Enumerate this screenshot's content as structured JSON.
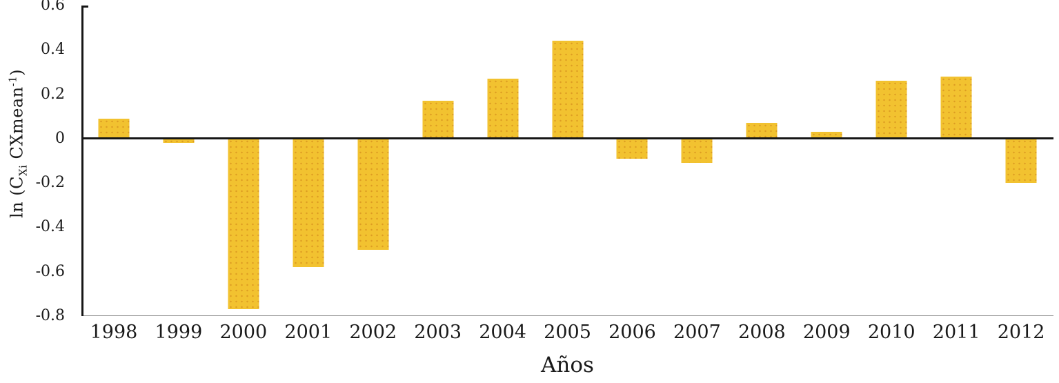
{
  "chart_data": {
    "type": "bar",
    "title": "",
    "categories": [
      "1998",
      "1999",
      "2000",
      "2001",
      "2002",
      "2003",
      "2004",
      "2005",
      "2006",
      "2007",
      "2008",
      "2009",
      "2010",
      "2011",
      "2012"
    ],
    "values": [
      0.09,
      -0.02,
      -0.77,
      -0.58,
      -0.5,
      0.17,
      0.27,
      0.44,
      -0.09,
      -0.11,
      0.07,
      0.03,
      0.26,
      0.28,
      -0.2
    ],
    "xlabel": "Años",
    "ylabel": "ln (C_Xi CXmean^-1)",
    "ylim": [
      -0.8,
      0.6
    ],
    "yticks": [
      0.6,
      0.4,
      0.2,
      0,
      -0.2,
      -0.4,
      -0.6,
      -0.8
    ],
    "ytick_labels": [
      "0.6",
      "0.4",
      "0.2",
      "0",
      "-0.2",
      "-0.4",
      "-0.6",
      "-0.8"
    ],
    "grid": false,
    "legend": null,
    "bar_color": "#F2C230",
    "bar_speckle_color": "#CC8018",
    "axis_color": "#161616",
    "baseline_color": "#8F8F8F"
  },
  "y_axis_title": {
    "prefix": "ln (C",
    "sub": "Xi",
    "mid": " CXmean",
    "sup": "-1",
    "suffix": ")"
  }
}
